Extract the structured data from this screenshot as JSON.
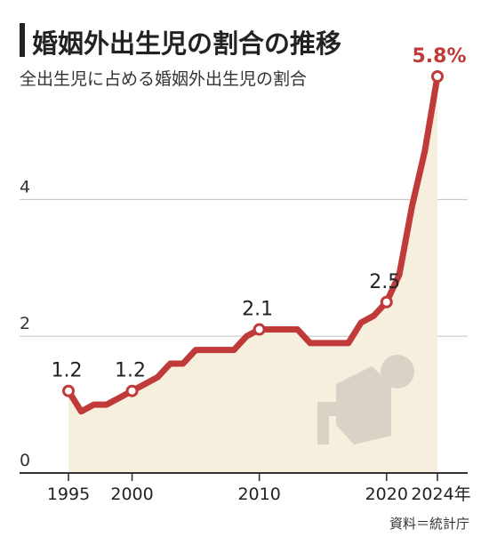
{
  "title": "婚姻外出生児の割合の推移",
  "subtitle": "全出生児に占める婚姻外出生児の割合",
  "source": "資料＝統計庁",
  "colors": {
    "line": "#c03a3a",
    "area": "#f7efdd",
    "grid": "#c8c8c8",
    "axis": "#333333",
    "icon": "#d9d3c7"
  },
  "chart_data": {
    "type": "area",
    "title": "婚姻外出生児の割合の推移",
    "subtitle": "全出生児に占める婚姻外出生児の割合",
    "xlabel": "",
    "ylabel": "",
    "x_unit_suffix": "年",
    "xlim": [
      1995,
      2024
    ],
    "ylim": [
      0,
      5.8
    ],
    "y_ticks": [
      0,
      2,
      4
    ],
    "x_ticks": [
      1995,
      2000,
      2010,
      2020,
      2024
    ],
    "x_tick_labels": [
      "1995",
      "2000",
      "2010",
      "2020",
      "2024年"
    ],
    "grid": "horizontal",
    "series": [
      {
        "x": [
          1995,
          1996,
          1997,
          1998,
          1999,
          2000,
          2001,
          2002,
          2003,
          2004,
          2005,
          2006,
          2007,
          2008,
          2009,
          2010,
          2011,
          2012,
          2013,
          2014,
          2015,
          2016,
          2017,
          2018,
          2019,
          2020,
          2021,
          2022,
          2023,
          2024
        ],
        "values": [
          1.2,
          0.9,
          1.0,
          1.0,
          1.1,
          1.2,
          1.3,
          1.4,
          1.6,
          1.6,
          1.8,
          1.8,
          1.8,
          1.8,
          2.0,
          2.1,
          2.1,
          2.1,
          2.1,
          1.9,
          1.9,
          1.9,
          1.9,
          2.2,
          2.3,
          2.5,
          2.9,
          3.9,
          4.7,
          5.8
        ]
      }
    ],
    "data_labels": [
      {
        "x": 1995,
        "text": "1.2"
      },
      {
        "x": 2000,
        "text": "1.2"
      },
      {
        "x": 2010,
        "text": "2.1"
      },
      {
        "x": 2020,
        "text": "2.5"
      },
      {
        "x": 2024,
        "text": "5.8%"
      }
    ]
  }
}
